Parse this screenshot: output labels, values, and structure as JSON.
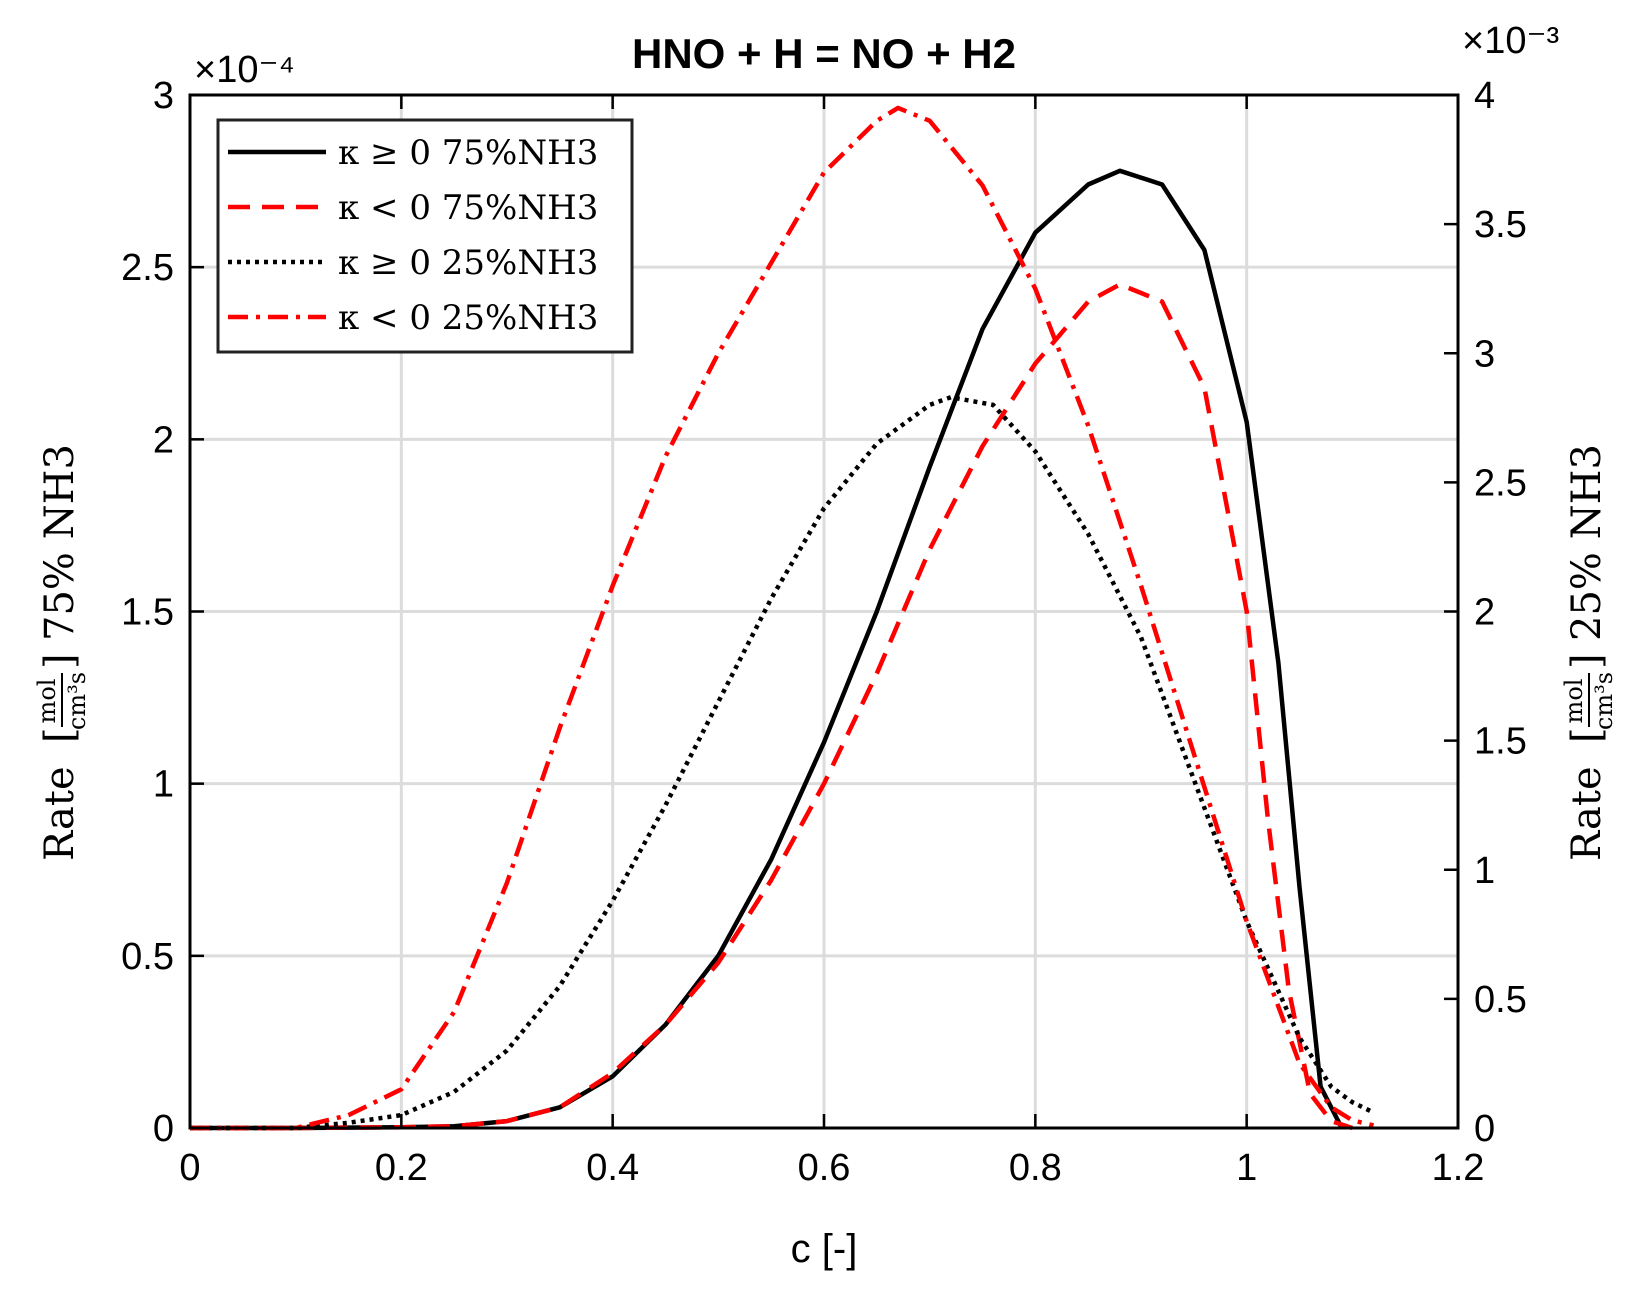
{
  "chart_data": {
    "type": "line",
    "title": "HNO + H = NO + H2",
    "xlabel": "c [-]",
    "ylabel_left": "Rate [mol/cm³s] 75% NH3",
    "ylabel_right": "Rate [mol/cm³s] 25% NH3",
    "ylabel_left_text": "Rate",
    "ylabel_left_case": "75% NH3",
    "ylabel_right_text": "Rate",
    "ylabel_right_case": "25% NH3",
    "unit_num": "mol",
    "unit_den": "cm³s",
    "xlim": [
      0,
      1.2
    ],
    "ylim_left": [
      0,
      3
    ],
    "ylim_right": [
      0,
      4
    ],
    "left_exponent": "×10⁻⁴",
    "right_exponent": "×10⁻³",
    "x_ticks": [
      "0",
      "0.2",
      "0.4",
      "0.6",
      "0.8",
      "1",
      "1.2"
    ],
    "y_left_ticks": [
      "0",
      "0.5",
      "1",
      "1.5",
      "2",
      "2.5",
      "3"
    ],
    "y_right_ticks": [
      "0",
      "0.5",
      "1",
      "1.5",
      "2",
      "2.5",
      "3",
      "3.5",
      "4"
    ],
    "grid": true,
    "legend_position": "top-left",
    "series": [
      {
        "name": "κ ≥ 0 75%NH3",
        "axis": "left",
        "color": "#000000",
        "style": "solid",
        "x": [
          0,
          0.1,
          0.2,
          0.25,
          0.3,
          0.35,
          0.4,
          0.45,
          0.5,
          0.55,
          0.6,
          0.65,
          0.7,
          0.75,
          0.8,
          0.85,
          0.88,
          0.92,
          0.96,
          1.0,
          1.03,
          1.05,
          1.07,
          1.09
        ],
        "values": [
          0,
          0,
          0.002,
          0.005,
          0.02,
          0.06,
          0.15,
          0.3,
          0.5,
          0.78,
          1.12,
          1.5,
          1.92,
          2.32,
          2.6,
          2.74,
          2.78,
          2.74,
          2.55,
          2.05,
          1.35,
          0.7,
          0.12,
          0
        ]
      },
      {
        "name": "κ < 0 75%NH3",
        "axis": "left",
        "color": "#ff0000",
        "style": "dashed",
        "x": [
          0,
          0.1,
          0.2,
          0.25,
          0.3,
          0.35,
          0.4,
          0.45,
          0.5,
          0.55,
          0.6,
          0.65,
          0.7,
          0.75,
          0.8,
          0.85,
          0.88,
          0.92,
          0.96,
          1.0,
          1.02,
          1.04,
          1.06,
          1.08,
          1.1
        ],
        "values": [
          0,
          0,
          0.002,
          0.005,
          0.02,
          0.06,
          0.16,
          0.3,
          0.48,
          0.72,
          1.0,
          1.32,
          1.68,
          1.98,
          2.22,
          2.4,
          2.45,
          2.4,
          2.15,
          1.5,
          0.9,
          0.4,
          0.1,
          0.02,
          0
        ]
      },
      {
        "name": "κ ≥ 0 25%NH3",
        "axis": "right",
        "color": "#000000",
        "style": "dotted",
        "x": [
          0,
          0.1,
          0.15,
          0.2,
          0.25,
          0.3,
          0.35,
          0.4,
          0.45,
          0.5,
          0.55,
          0.6,
          0.65,
          0.7,
          0.72,
          0.76,
          0.8,
          0.85,
          0.9,
          0.95,
          1.0,
          1.05,
          1.08,
          1.1,
          1.12
        ],
        "values": [
          0,
          0,
          0.02,
          0.05,
          0.14,
          0.3,
          0.55,
          0.88,
          1.25,
          1.65,
          2.05,
          2.4,
          2.65,
          2.8,
          2.83,
          2.8,
          2.62,
          2.3,
          1.9,
          1.35,
          0.8,
          0.35,
          0.16,
          0.1,
          0.06
        ]
      },
      {
        "name": "κ < 0 25%NH3",
        "axis": "right",
        "color": "#ff0000",
        "style": "dashdot",
        "x": [
          0,
          0.1,
          0.15,
          0.2,
          0.25,
          0.3,
          0.35,
          0.4,
          0.45,
          0.5,
          0.55,
          0.6,
          0.65,
          0.67,
          0.7,
          0.75,
          0.8,
          0.85,
          0.9,
          0.95,
          1.0,
          1.05,
          1.08,
          1.1,
          1.12
        ],
        "values": [
          0,
          0,
          0.05,
          0.15,
          0.45,
          0.95,
          1.55,
          2.1,
          2.6,
          3.0,
          3.35,
          3.7,
          3.9,
          3.95,
          3.9,
          3.65,
          3.25,
          2.72,
          2.1,
          1.45,
          0.8,
          0.25,
          0.08,
          0.03,
          0.01
        ]
      }
    ]
  }
}
